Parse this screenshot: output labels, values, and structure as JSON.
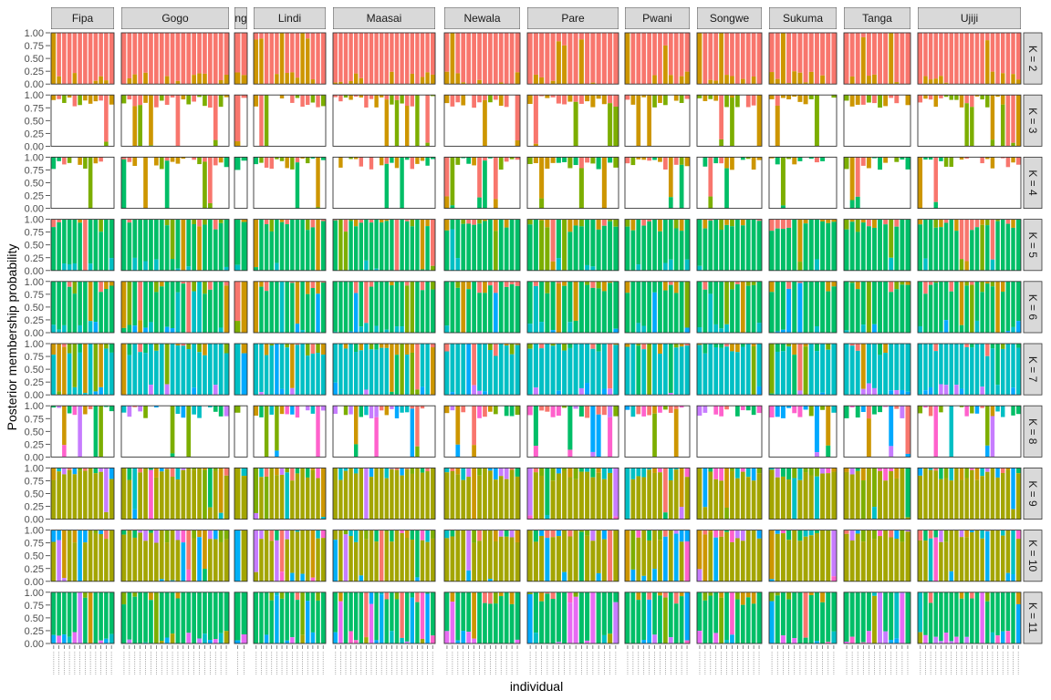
{
  "chart_data": {
    "type": "bar",
    "subtype": "stacked-100-percent-faceted",
    "xlabel": "individual",
    "ylabel": "Posterior membership probability",
    "ylim": [
      0,
      1
    ],
    "y_ticks": [
      "0.00",
      "0.25",
      "0.50",
      "0.75",
      "1.00"
    ],
    "grid": false,
    "populations": [
      {
        "name": "Fipa",
        "n": 12
      },
      {
        "name": "Gogo",
        "n": 20
      },
      {
        "name": "ng",
        "n": 2
      },
      {
        "name": "Lindi",
        "n": 14
      },
      {
        "name": "Maasai",
        "n": 20
      },
      {
        "name": "Newala",
        "n": 14
      },
      {
        "name": "Pare",
        "n": 16
      },
      {
        "name": "Pwani",
        "n": 12
      },
      {
        "name": "Songwe",
        "n": 12
      },
      {
        "name": "Sukuma",
        "n": 12
      },
      {
        "name": "Tanga",
        "n": 12
      },
      {
        "name": "Ujiji",
        "n": 20
      }
    ],
    "k_values": [
      {
        "k": 2,
        "label": "K = 2"
      },
      {
        "k": 3,
        "label": "K = 3"
      },
      {
        "k": 4,
        "label": "K = 4"
      },
      {
        "k": 5,
        "label": "K = 5"
      },
      {
        "k": 6,
        "label": "K = 6"
      },
      {
        "k": 7,
        "label": "K = 7"
      },
      {
        "k": 8,
        "label": "K = 8"
      },
      {
        "k": 9,
        "label": "K = 9"
      },
      {
        "k": 10,
        "label": "K = 10"
      },
      {
        "k": 11,
        "label": "K = 11"
      }
    ],
    "cluster_colors": [
      "#F8766D",
      "#CD9600",
      "#7CAE00",
      "#00BE67",
      "#00BFC4",
      "#00A9FF",
      "#C77CFF",
      "#FF61CC",
      "#A3A500",
      "#00B0F6",
      "#E76BF3"
    ],
    "dominant_cluster_by_k": {
      "2": 0,
      "3": 8,
      "4": 8,
      "5": 3,
      "6": 3,
      "7": 4,
      "8": 9,
      "9": 8,
      "10": 8,
      "11": 3
    },
    "colors": {
      "strip_bg": "#D9D9D9",
      "panel_border": "#333333",
      "bar_separator": "#FFFFFF"
    }
  }
}
